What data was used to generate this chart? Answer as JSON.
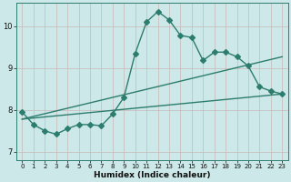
{
  "xlabel": "Humidex (Indice chaleur)",
  "background_color": "#cce8e8",
  "grid_color": "#c8b8b8",
  "line_color": "#2d7d6e",
  "xlim": [
    -0.5,
    23.5
  ],
  "ylim": [
    6.8,
    10.55
  ],
  "yticks": [
    7,
    8,
    9,
    10
  ],
  "xticks": [
    0,
    1,
    2,
    3,
    4,
    5,
    6,
    7,
    8,
    9,
    10,
    11,
    12,
    13,
    14,
    15,
    16,
    17,
    18,
    19,
    20,
    21,
    22,
    23
  ],
  "main_x": [
    0,
    1,
    2,
    3,
    4,
    5,
    6,
    7,
    8,
    9,
    10,
    11,
    12,
    13,
    14,
    15,
    16,
    17,
    18,
    19,
    20,
    21,
    22,
    23
  ],
  "main_y": [
    7.95,
    7.65,
    7.5,
    7.42,
    7.55,
    7.65,
    7.65,
    7.62,
    7.9,
    8.3,
    9.35,
    10.1,
    10.35,
    10.15,
    9.78,
    9.73,
    9.18,
    9.38,
    9.38,
    9.27,
    9.05,
    8.55,
    8.45,
    8.38
  ],
  "line1_x": [
    0,
    23
  ],
  "line1_y": [
    7.78,
    8.38
  ],
  "line2_x": [
    0,
    23
  ],
  "line2_y": [
    7.78,
    9.27
  ],
  "markersize": 3.0,
  "linewidth": 1.0
}
